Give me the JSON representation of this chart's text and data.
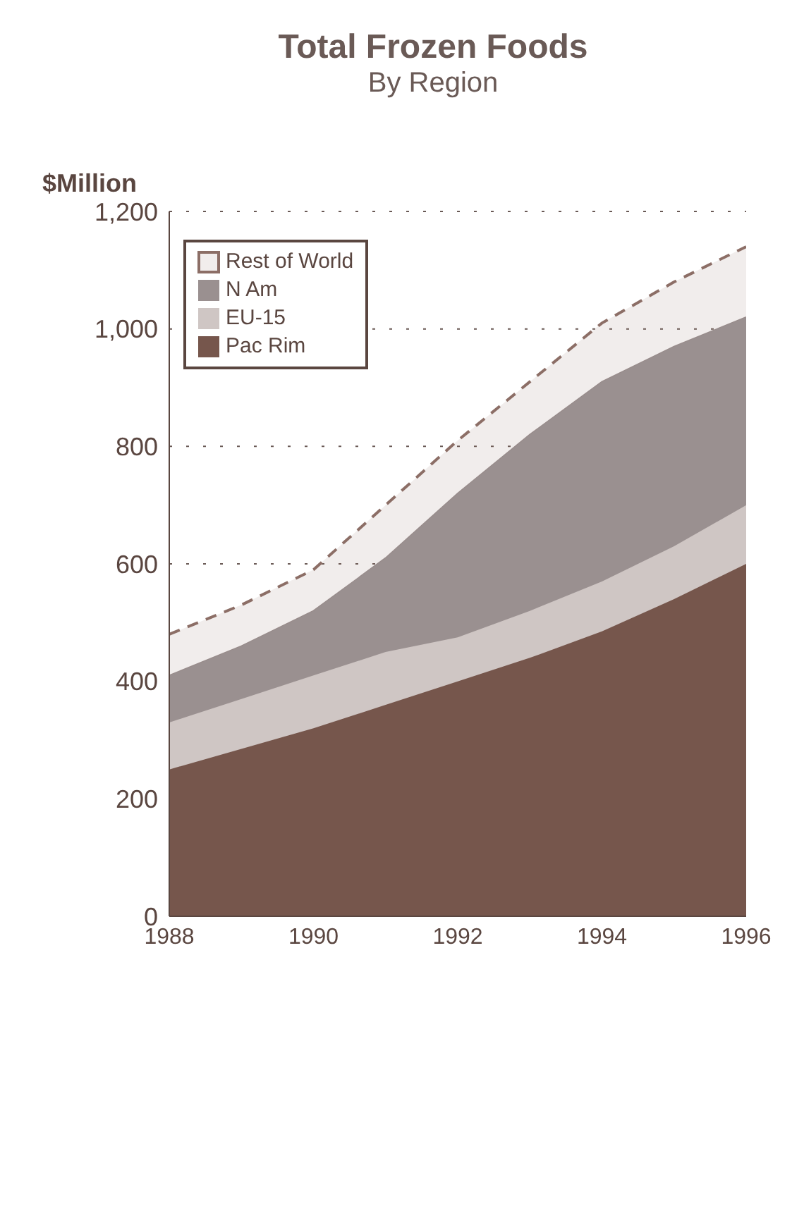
{
  "chart_data": {
    "type": "area",
    "title": "Total Frozen Foods",
    "subtitle": "By Region",
    "ylabel": "$Million",
    "stacked": true,
    "x": [
      1988,
      1989,
      1990,
      1991,
      1992,
      1993,
      1994,
      1995,
      1996
    ],
    "xlim": [
      1988,
      1996
    ],
    "xticks": [
      1988,
      1990,
      1992,
      1994,
      1996
    ],
    "ylim": [
      0,
      1200
    ],
    "yticks": [
      0,
      200,
      400,
      600,
      800,
      {
        "value": 1000,
        "label": "1,000"
      },
      {
        "value": 1200,
        "label": "1,200"
      }
    ],
    "grid": "y",
    "legend": "top left",
    "series": [
      {
        "name": "Pac Rim",
        "color": "#76564c",
        "values": [
          250,
          285,
          320,
          360,
          400,
          440,
          485,
          540,
          600
        ]
      },
      {
        "name": "EU-15",
        "color": "#cfc6c4",
        "values": [
          80,
          85,
          90,
          90,
          75,
          80,
          85,
          90,
          100
        ]
      },
      {
        "name": "N Am",
        "color": "#9a9090",
        "values": [
          80,
          90,
          110,
          160,
          245,
          300,
          340,
          340,
          320
        ]
      },
      {
        "name": "Rest of World",
        "color": "#8c6e66",
        "line_style": "dashed",
        "values": [
          70,
          70,
          70,
          90,
          90,
          90,
          100,
          110,
          120
        ]
      }
    ]
  }
}
